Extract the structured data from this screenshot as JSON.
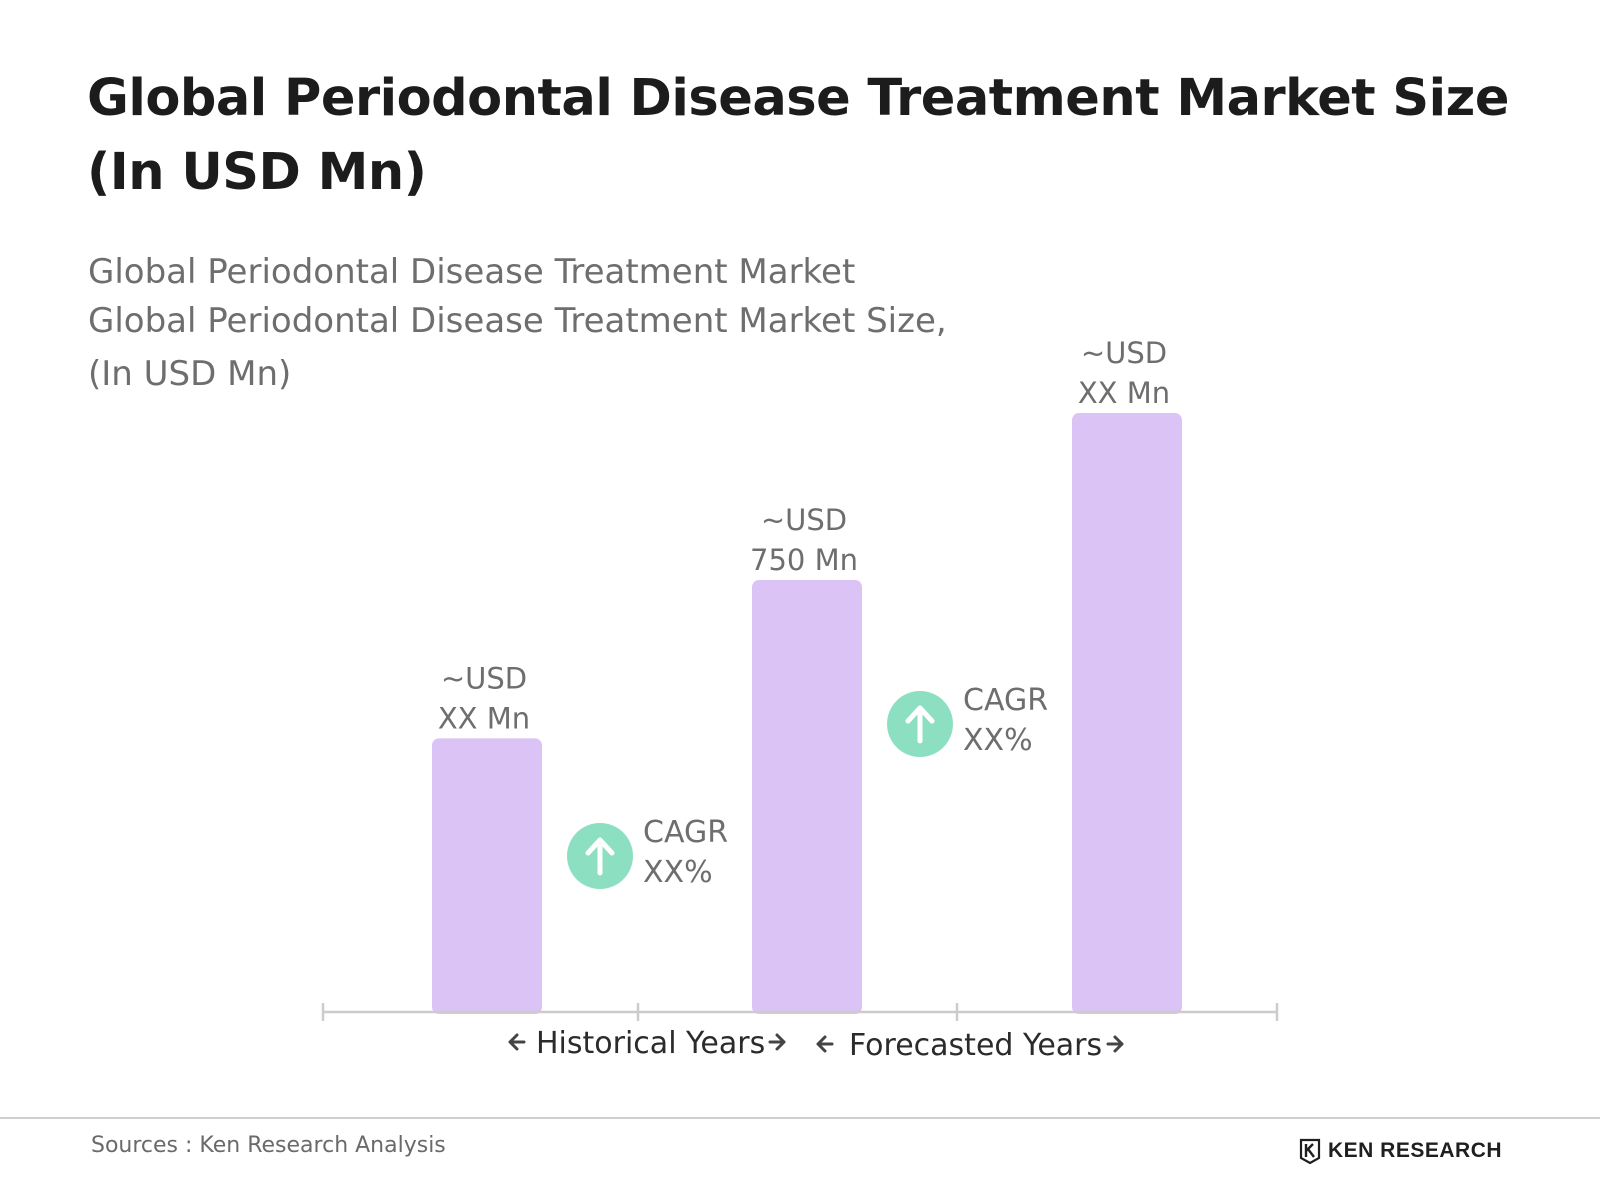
{
  "title": "Global Periodontal Disease Treatment Market Size (In USD Mn)",
  "subtitle": {
    "line1": "Global Periodontal Disease Treatment Market",
    "line2": "Global Periodontal Disease Treatment Market Size,",
    "line3": "(In USD Mn)"
  },
  "chart_data": {
    "type": "bar",
    "categories": [
      "",
      "",
      ""
    ],
    "values": [
      475,
      750,
      1040
    ],
    "value_labels": [
      [
        "~USD",
        "XX Mn"
      ],
      [
        "~USD",
        "750 Mn"
      ],
      [
        "~USD",
        "XX Mn"
      ]
    ],
    "bar_color": "#dcc3f6",
    "cagr_markers": [
      {
        "line1": "CAGR",
        "line2": "XX%"
      },
      {
        "line1": "CAGR",
        "line2": "XX%"
      }
    ],
    "cagr_icon_color": "#8ddfc2",
    "axis_segments": [
      "Historical Years",
      "Forecasted Years"
    ],
    "ylim": [
      0,
      1080
    ],
    "grid": false
  },
  "footer": {
    "source": "Sources : Ken Research Analysis",
    "brand": "KEN RESEARCH",
    "brand_icon": "ken-research-logo-icon"
  }
}
